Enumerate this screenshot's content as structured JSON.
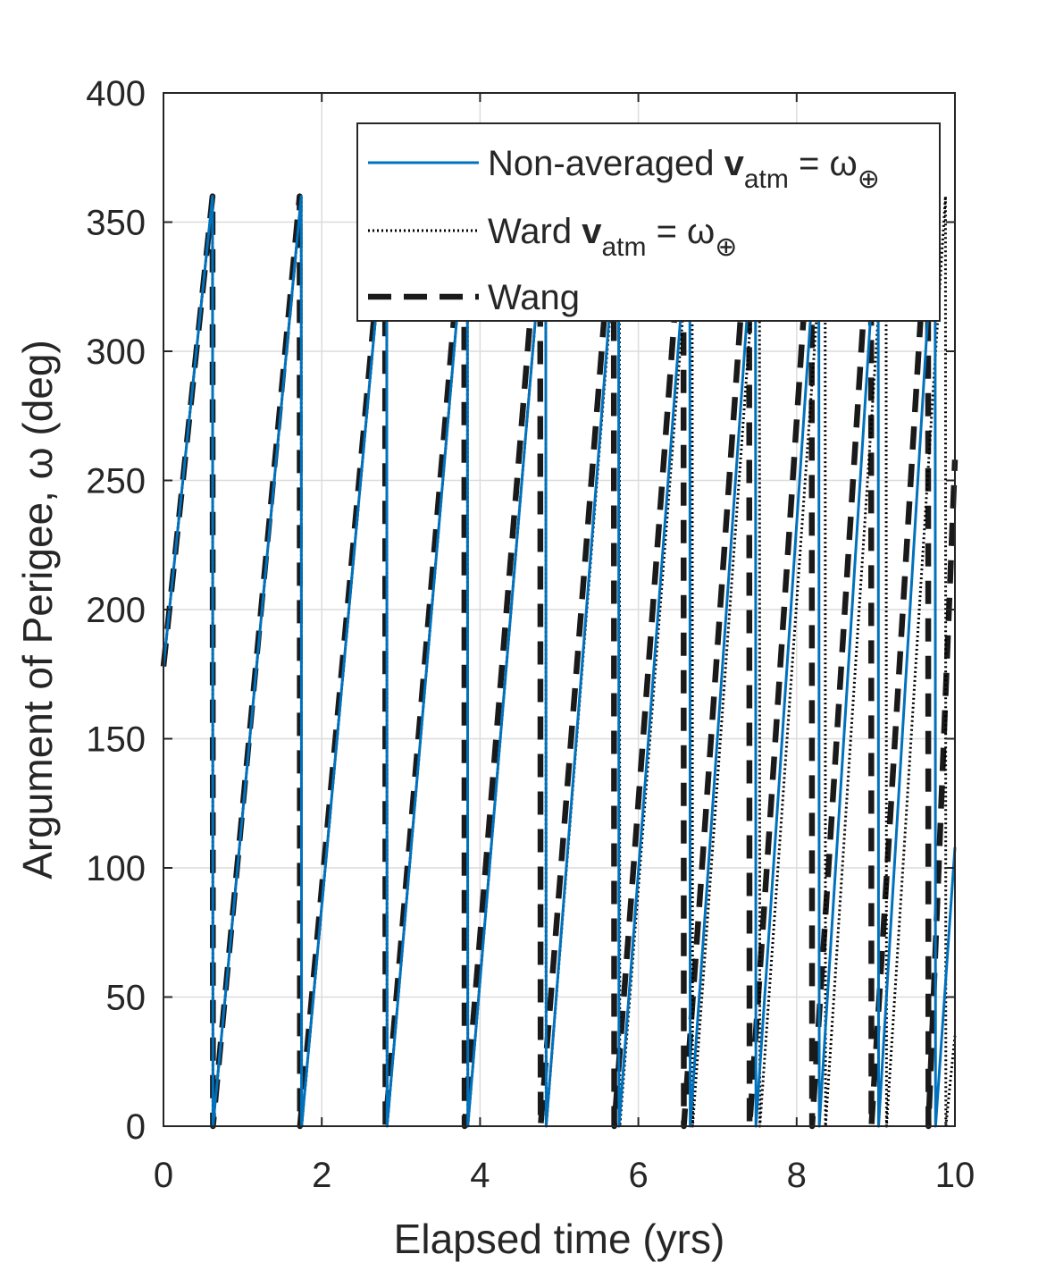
{
  "chart_data": {
    "type": "line",
    "xlabel": "Elapsed time (yrs)",
    "ylabel": "Argument of Perigee, ω (deg)",
    "xlim": [
      0,
      10
    ],
    "ylim": [
      0,
      400
    ],
    "xticks": [
      0,
      2,
      4,
      6,
      8,
      10
    ],
    "yticks": [
      0,
      50,
      100,
      150,
      200,
      250,
      300,
      350,
      400
    ],
    "grid": true,
    "legend_position": "top-right",
    "series": [
      {
        "name": "Non-averaged v_atm = ω⊕",
        "legend": {
          "pre": "Non-averaged ",
          "bold": "v",
          "sub": "atm",
          "post": " = ω",
          "post_sub": "⊕"
        },
        "color": "#0072bd",
        "style": "solid",
        "start_value": 178,
        "wrap_times": [
          0.62,
          1.74,
          2.82,
          3.84,
          4.83,
          5.75,
          6.65,
          7.48,
          8.28,
          9.03,
          9.75
        ],
        "end_value": 108
      },
      {
        "name": "Ward v_atm = ω⊕",
        "legend": {
          "pre": "Ward ",
          "bold": "v",
          "sub": "atm",
          "post": " = ω",
          "post_sub": "⊕"
        },
        "color": "#000000",
        "style": "dotted",
        "start_value": 178,
        "wrap_times": [
          0.62,
          1.74,
          2.82,
          3.84,
          4.83,
          5.76,
          6.68,
          7.53,
          8.36,
          9.13,
          9.88
        ],
        "end_value": 35
      },
      {
        "name": "Wang",
        "legend": {
          "pre": "Wang",
          "bold": "",
          "sub": "",
          "post": "",
          "post_sub": ""
        },
        "color": "#1a1a1a",
        "style": "dashed",
        "start_value": 178,
        "wrap_times": [
          0.62,
          1.72,
          2.8,
          3.8,
          4.76,
          5.69,
          6.57,
          7.4,
          8.19,
          8.94,
          9.66
        ],
        "end_value": 258
      }
    ]
  }
}
